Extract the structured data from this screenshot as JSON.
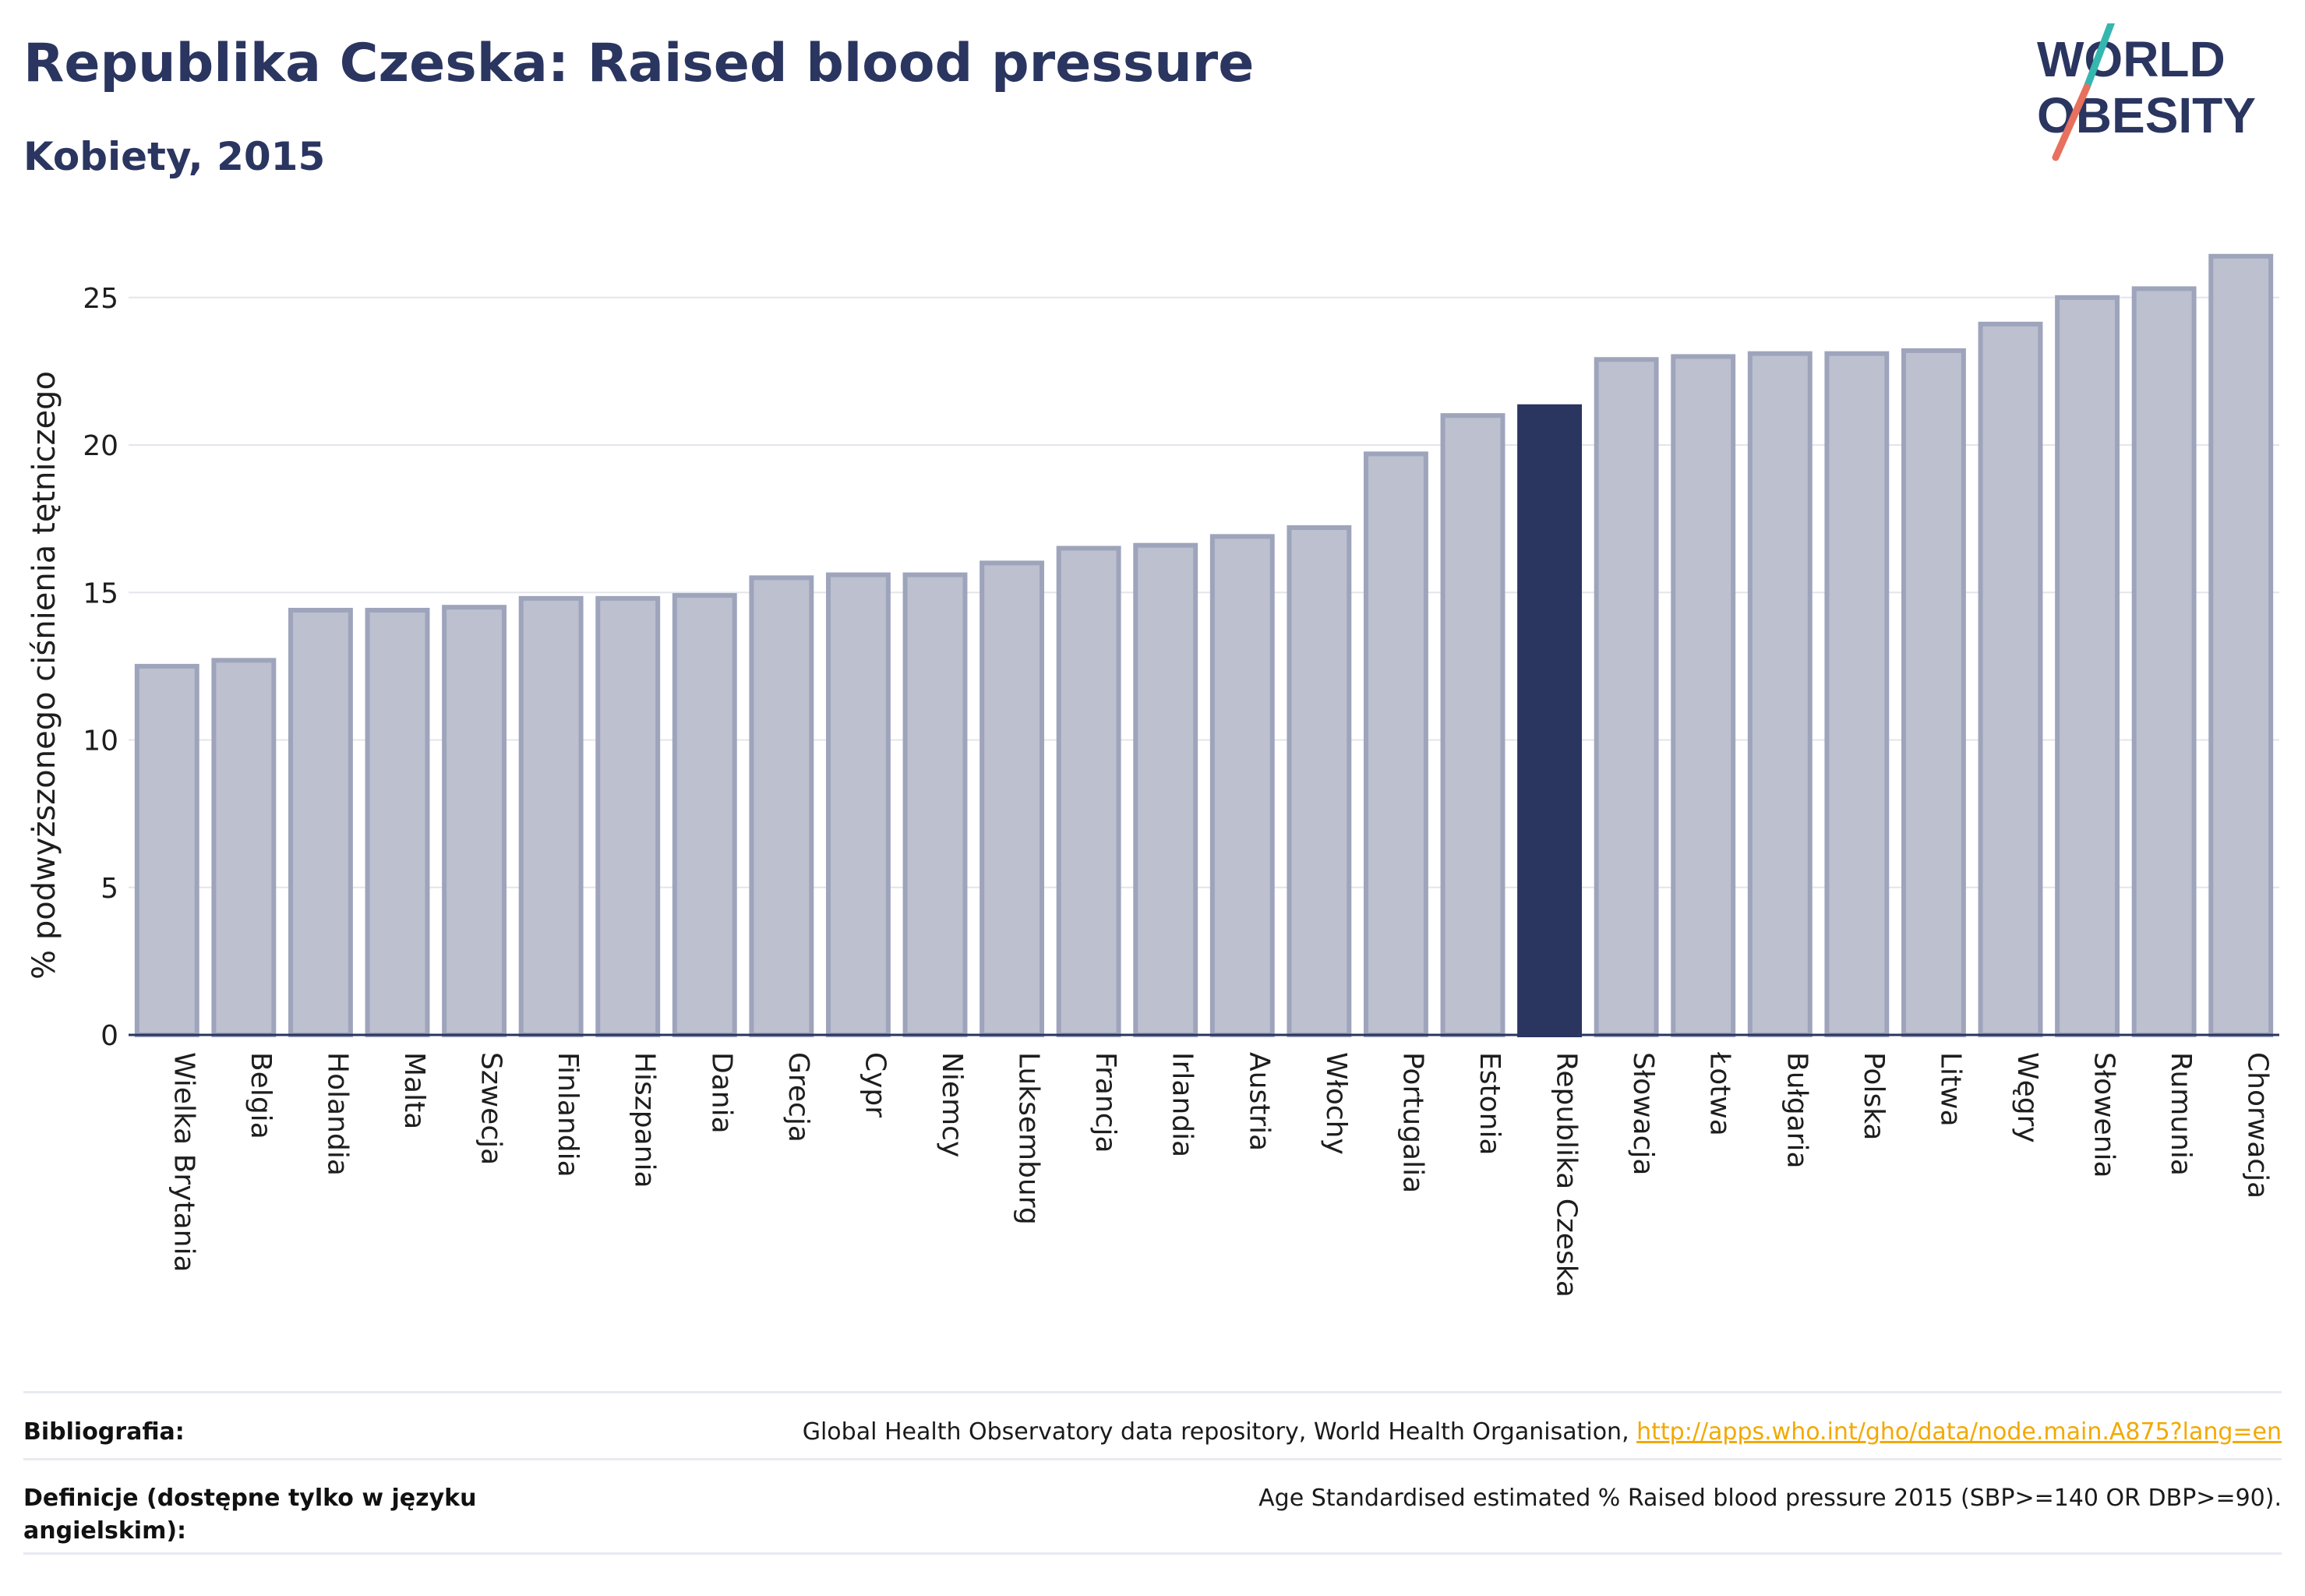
{
  "header": {
    "title": "Republika Czeska: Raised blood pressure",
    "subtitle": "Kobiety, 2015"
  },
  "logo": {
    "line1": "WORLD",
    "line2": "OBESITY",
    "text_color": "#2a3560",
    "slash_top_color": "#35b7b0",
    "slash_bottom_color": "#e8705e"
  },
  "colors": {
    "bar_fill": "#bcc0cf",
    "bar_stroke": "#9ea4bb",
    "highlight": "#2a3560",
    "grid": "#e3e5ec",
    "axis_text": "#1e1e1e"
  },
  "chart_data": {
    "type": "bar",
    "ylabel": "% podwyższonego ciśnienia tętniczego",
    "ylim": [
      0,
      26.5
    ],
    "yticks": [
      0,
      5,
      10,
      15,
      20,
      25
    ],
    "grid": true,
    "highlight_category": "Republika Czeska",
    "categories": [
      "Wielka Brytania",
      "Belgia",
      "Holandia",
      "Malta",
      "Szwecja",
      "Finlandia",
      "Hiszpania",
      "Dania",
      "Grecja",
      "Cypr",
      "Niemcy",
      "Luksemburg",
      "Francja",
      "Irlandia",
      "Austria",
      "Włochy",
      "Portugalia",
      "Estonia",
      "Republika Czeska",
      "Słowacja",
      "Łotwa",
      "Bułgaria",
      "Polska",
      "Litwa",
      "Węgry",
      "Słowenia",
      "Rumunia",
      "Chorwacja"
    ],
    "values": [
      12.5,
      12.7,
      14.4,
      14.4,
      14.5,
      14.8,
      14.8,
      14.9,
      15.5,
      15.6,
      15.6,
      16.0,
      16.5,
      16.6,
      16.9,
      17.2,
      19.7,
      21.0,
      21.3,
      22.9,
      23.0,
      23.1,
      23.1,
      23.2,
      24.1,
      25.0,
      25.3,
      26.4
    ]
  },
  "footer": {
    "bibliography_label": "Bibliografia:",
    "bibliography_text": "Global Health Observatory data repository, World Health Organisation, ",
    "bibliography_link": "http://apps.who.int/gho/data/node.main.A875?lang=en",
    "definitions_label": "Definicje (dostępne tylko w języku angielskim):",
    "definitions_text": "Age Standardised estimated % Raised blood pressure 2015 (SBP>=140 OR DBP>=90)."
  }
}
